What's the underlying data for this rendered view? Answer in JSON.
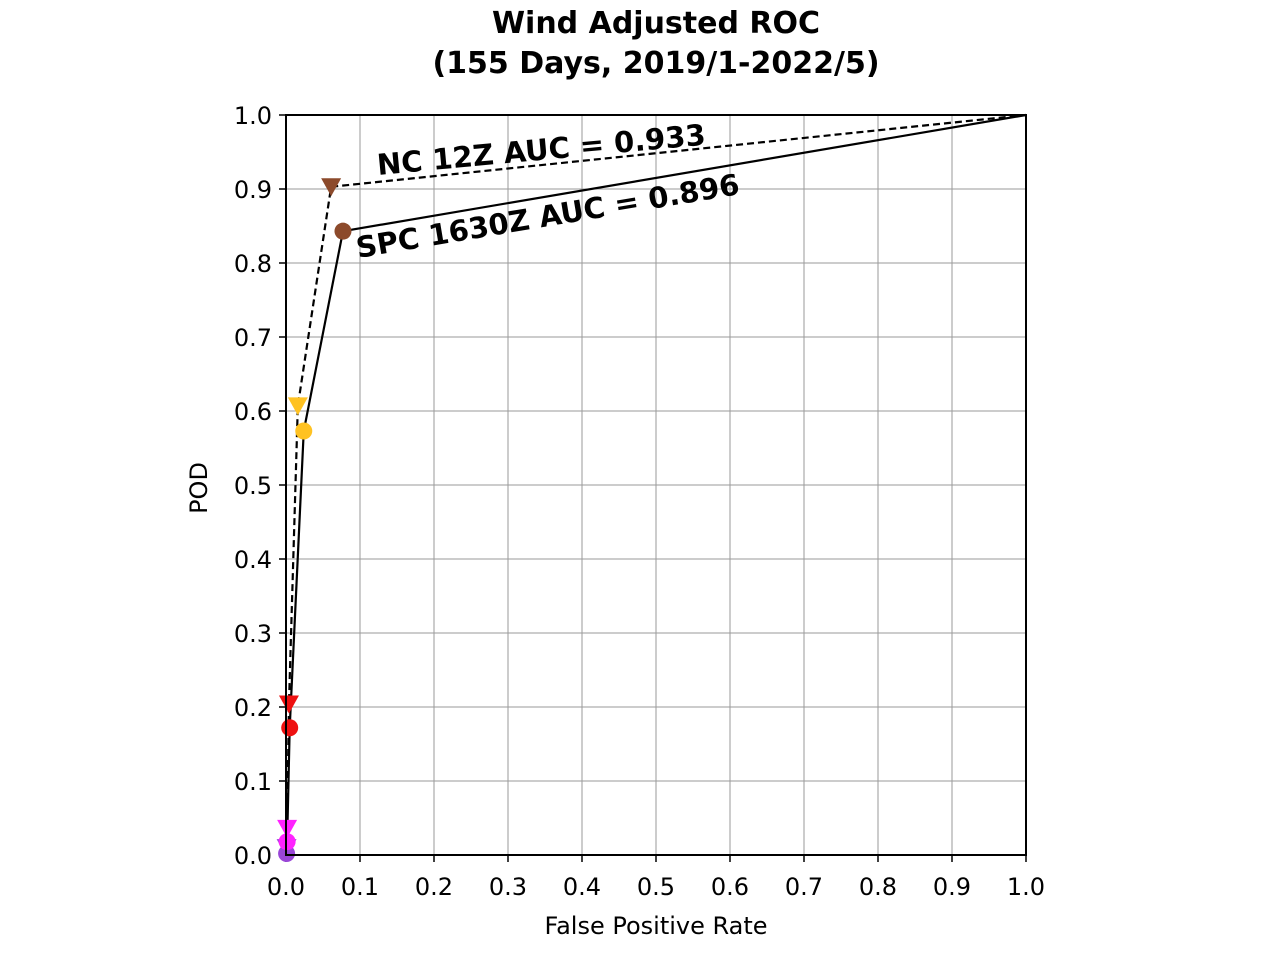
{
  "chart_data": {
    "type": "line",
    "title": "Wind Adjusted ROC",
    "subtitle": "(155 Days, 2019/1-2022/5)",
    "xlabel": "False Positive Rate",
    "ylabel": "POD",
    "xlim": [
      0.0,
      1.0
    ],
    "ylim": [
      0.0,
      1.0
    ],
    "grid": true,
    "xticks": [
      "0.0",
      "0.1",
      "0.2",
      "0.3",
      "0.4",
      "0.5",
      "0.6",
      "0.7",
      "0.8",
      "0.9",
      "1.0"
    ],
    "yticks": [
      "0.0",
      "0.1",
      "0.2",
      "0.3",
      "0.4",
      "0.5",
      "0.6",
      "0.7",
      "0.8",
      "0.9",
      "1.0"
    ],
    "series": [
      {
        "name": "NC 12Z",
        "line_style": "dashed",
        "marker": "triangle-down",
        "color": "#000000",
        "points": [
          {
            "x": 0.0,
            "y": 0.0
          },
          {
            "x": 0.0008,
            "y": 0.01,
            "color": "#9a46d8"
          },
          {
            "x": 0.0015,
            "y": 0.036,
            "color": "#ff22ff"
          },
          {
            "x": 0.004,
            "y": 0.204,
            "color": "#ee1111"
          },
          {
            "x": 0.016,
            "y": 0.607,
            "color": "#ffc222"
          },
          {
            "x": 0.061,
            "y": 0.903,
            "color": "#8c4a2b"
          },
          {
            "x": 1.0,
            "y": 1.0
          }
        ],
        "annotation": "NC 12Z AUC = 0.933"
      },
      {
        "name": "SPC 1630Z",
        "line_style": "solid",
        "marker": "circle",
        "color": "#000000",
        "points": [
          {
            "x": 0.0,
            "y": 0.0
          },
          {
            "x": 0.0008,
            "y": 0.002,
            "color": "#9a46d8"
          },
          {
            "x": 0.0015,
            "y": 0.018,
            "color": "#ff22ff"
          },
          {
            "x": 0.005,
            "y": 0.172,
            "color": "#ee1111"
          },
          {
            "x": 0.024,
            "y": 0.573,
            "color": "#ffc222"
          },
          {
            "x": 0.077,
            "y": 0.843,
            "color": "#8c4a2b"
          },
          {
            "x": 1.0,
            "y": 1.0
          }
        ],
        "annotation": "SPC 1630Z AUC = 0.896"
      }
    ]
  }
}
